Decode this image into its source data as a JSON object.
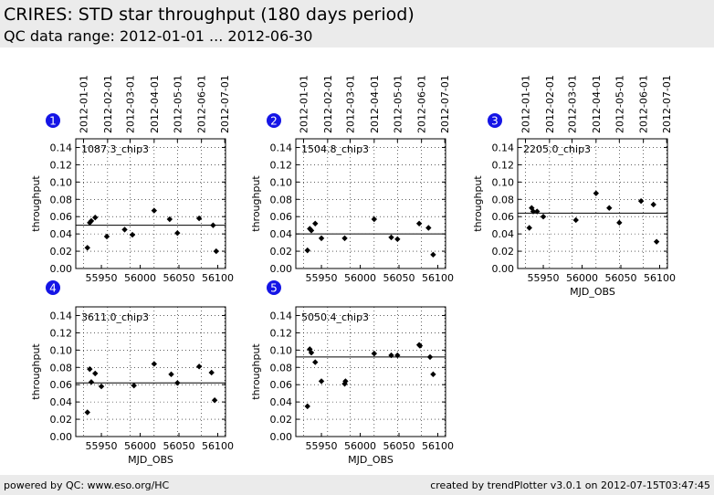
{
  "header": {
    "title": "CRIRES: STD star throughput (180 days period)",
    "subtitle": "QC data range: 2012-01-01 ... 2012-06-30"
  },
  "footer": {
    "left": "powered by QC: www.eso.org/HC",
    "right": "created by trendPlotter v3.0.1 on 2012-07-15T03:47:45"
  },
  "chart_data": [
    {
      "type": "scatter",
      "badge": "1",
      "label": "1087.3_chip3",
      "ylabel": "throughput",
      "xlabel": "",
      "xlim": [
        55917,
        56110
      ],
      "ylim": [
        0,
        0.15
      ],
      "xticks": [
        55950,
        56000,
        56050,
        56100
      ],
      "yticks": [
        0.0,
        0.02,
        0.04,
        0.06,
        0.08,
        0.1,
        0.12,
        0.14
      ],
      "date_ticks": [
        "2012-01-01",
        "2012-02-01",
        "2012-03-01",
        "2012-04-01",
        "2012-05-01",
        "2012-06-01",
        "2012-07-01"
      ],
      "date_tick_mjd": [
        55927,
        55958,
        55987,
        56018,
        56048,
        56079,
        56109
      ],
      "show_top_dates": true,
      "reference_line": 0.05,
      "points": [
        [
          55932,
          0.024
        ],
        [
          55935,
          0.053
        ],
        [
          55937,
          0.055
        ],
        [
          55942,
          0.059
        ],
        [
          55957,
          0.037
        ],
        [
          55980,
          0.045
        ],
        [
          55990,
          0.039
        ],
        [
          56018,
          0.067
        ],
        [
          56038,
          0.057
        ],
        [
          56048,
          0.041
        ],
        [
          56076,
          0.058
        ],
        [
          56094,
          0.05
        ],
        [
          56098,
          0.02
        ]
      ]
    },
    {
      "type": "scatter",
      "badge": "2",
      "label": "1504.8_chip3",
      "ylabel": "throughput",
      "xlabel": "",
      "xlim": [
        55917,
        56110
      ],
      "ylim": [
        0,
        0.15
      ],
      "xticks": [
        55950,
        56000,
        56050,
        56100
      ],
      "yticks": [
        0.0,
        0.02,
        0.04,
        0.06,
        0.08,
        0.1,
        0.12,
        0.14
      ],
      "date_ticks": [
        "2012-01-01",
        "2012-02-01",
        "2012-03-01",
        "2012-04-01",
        "2012-05-01",
        "2012-06-01",
        "2012-07-01"
      ],
      "date_tick_mjd": [
        55927,
        55958,
        55987,
        56018,
        56048,
        56079,
        56109
      ],
      "show_top_dates": true,
      "reference_line": 0.04,
      "points": [
        [
          55932,
          0.021
        ],
        [
          55935,
          0.046
        ],
        [
          55937,
          0.044
        ],
        [
          55942,
          0.052
        ],
        [
          55950,
          0.035
        ],
        [
          55980,
          0.035
        ],
        [
          56018,
          0.057
        ],
        [
          56040,
          0.036
        ],
        [
          56048,
          0.034
        ],
        [
          56076,
          0.052
        ],
        [
          56088,
          0.047
        ],
        [
          56094,
          0.016
        ]
      ]
    },
    {
      "type": "scatter",
      "badge": "3",
      "label": "2205.0_chip3",
      "ylabel": "throughput",
      "xlabel": "MJD_OBS",
      "xlim": [
        55917,
        56110
      ],
      "ylim": [
        0,
        0.15
      ],
      "xticks": [
        55950,
        56000,
        56050,
        56100
      ],
      "yticks": [
        0.0,
        0.02,
        0.04,
        0.06,
        0.08,
        0.1,
        0.12,
        0.14
      ],
      "date_ticks": [
        "2012-01-01",
        "2012-02-01",
        "2012-03-01",
        "2012-04-01",
        "2012-05-01",
        "2012-06-01",
        "2012-07-01"
      ],
      "date_tick_mjd": [
        55927,
        55958,
        55987,
        56018,
        56048,
        56079,
        56109
      ],
      "show_top_dates": true,
      "reference_line": 0.064,
      "points": [
        [
          55932,
          0.047
        ],
        [
          55935,
          0.07
        ],
        [
          55937,
          0.066
        ],
        [
          55942,
          0.066
        ],
        [
          55950,
          0.06
        ],
        [
          55992,
          0.056
        ],
        [
          56018,
          0.087
        ],
        [
          56035,
          0.07
        ],
        [
          56048,
          0.053
        ],
        [
          56076,
          0.078
        ],
        [
          56092,
          0.074
        ],
        [
          56096,
          0.031
        ]
      ]
    },
    {
      "type": "scatter",
      "badge": "4",
      "label": "3611.0_chip3",
      "ylabel": "throughput",
      "xlabel": "MJD_OBS",
      "xlim": [
        55917,
        56110
      ],
      "ylim": [
        0,
        0.15
      ],
      "xticks": [
        55950,
        56000,
        56050,
        56100
      ],
      "yticks": [
        0.0,
        0.02,
        0.04,
        0.06,
        0.08,
        0.1,
        0.12,
        0.14
      ],
      "date_ticks": [
        "2012-01-01",
        "2012-02-01",
        "2012-03-01",
        "2012-04-01",
        "2012-05-01",
        "2012-06-01",
        "2012-07-01"
      ],
      "date_tick_mjd": [
        55927,
        55958,
        55987,
        56018,
        56048,
        56079,
        56109
      ],
      "show_top_dates": false,
      "reference_line": 0.062,
      "points": [
        [
          55932,
          0.028
        ],
        [
          55935,
          0.078
        ],
        [
          55937,
          0.063
        ],
        [
          55942,
          0.073
        ],
        [
          55950,
          0.058
        ],
        [
          55992,
          0.059
        ],
        [
          56018,
          0.084
        ],
        [
          56040,
          0.072
        ],
        [
          56048,
          0.062
        ],
        [
          56076,
          0.081
        ],
        [
          56092,
          0.074
        ],
        [
          56096,
          0.042
        ]
      ]
    },
    {
      "type": "scatter",
      "badge": "5",
      "label": "5050.4_chip3",
      "ylabel": "throughput",
      "xlabel": "MJD_OBS",
      "xlim": [
        55917,
        56110
      ],
      "ylim": [
        0,
        0.15
      ],
      "xticks": [
        55950,
        56000,
        56050,
        56100
      ],
      "yticks": [
        0.0,
        0.02,
        0.04,
        0.06,
        0.08,
        0.1,
        0.12,
        0.14
      ],
      "date_ticks": [
        "2012-01-01",
        "2012-02-01",
        "2012-03-01",
        "2012-04-01",
        "2012-05-01",
        "2012-06-01",
        "2012-07-01"
      ],
      "date_tick_mjd": [
        55927,
        55958,
        55987,
        56018,
        56048,
        56079,
        56109
      ],
      "show_top_dates": false,
      "reference_line": 0.092,
      "points": [
        [
          55932,
          0.035
        ],
        [
          55935,
          0.101
        ],
        [
          55937,
          0.097
        ],
        [
          55942,
          0.086
        ],
        [
          55950,
          0.064
        ],
        [
          55980,
          0.061
        ],
        [
          55981,
          0.064
        ],
        [
          56018,
          0.096
        ],
        [
          56040,
          0.094
        ],
        [
          56048,
          0.094
        ],
        [
          56076,
          0.106
        ],
        [
          56077,
          0.105
        ],
        [
          56090,
          0.092
        ],
        [
          56094,
          0.072
        ]
      ]
    }
  ]
}
